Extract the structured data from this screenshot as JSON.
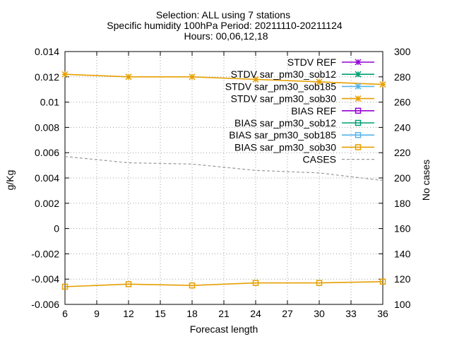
{
  "chart_data": {
    "type": "line",
    "title_lines": [
      "Selection: ALL using     7 stations",
      "Specific humidity 100hPa   Period: 20211110-20211124",
      "Hours: 00,06,12,18"
    ],
    "xlabel": "Forecast length",
    "ylabel": "g/Kg",
    "y2label": "No cases",
    "xlim": [
      6,
      36
    ],
    "ylim": [
      -0.006,
      0.014
    ],
    "y2lim": [
      100,
      300
    ],
    "xticks": [
      6,
      9,
      12,
      15,
      18,
      21,
      24,
      27,
      30,
      33,
      36
    ],
    "yticks": [
      "-0.006",
      "-0.004",
      "-0.002",
      "0",
      "0.002",
      "0.004",
      "0.006",
      "0.008",
      "0.01",
      "0.012",
      "0.014"
    ],
    "y2ticks": [
      100,
      120,
      140,
      160,
      180,
      200,
      220,
      240,
      260,
      280,
      300
    ],
    "grid": true,
    "legend_position": "top-right",
    "series": [
      {
        "name": "STDV REF",
        "color": "#9400d3",
        "marker": "star",
        "x": [],
        "y": []
      },
      {
        "name": "STDV sar_pm30_sob12",
        "color": "#009e73",
        "marker": "star",
        "x": [],
        "y": []
      },
      {
        "name": "STDV sar_pm30_sob185",
        "color": "#56b4e9",
        "marker": "star",
        "x": [],
        "y": []
      },
      {
        "name": "STDV sar_pm30_sob30",
        "color": "#e69f00",
        "marker": "star",
        "x": [
          6,
          12,
          18,
          24,
          30,
          36
        ],
        "y": [
          0.0122,
          0.012,
          0.012,
          0.0118,
          0.0116,
          0.0114
        ]
      },
      {
        "name": "BIAS REF",
        "color": "#9400d3",
        "marker": "square",
        "x": [],
        "y": []
      },
      {
        "name": "BIAS sar_pm30_sob12",
        "color": "#009e73",
        "marker": "square",
        "x": [],
        "y": []
      },
      {
        "name": "BIAS sar_pm30_sob185",
        "color": "#56b4e9",
        "marker": "square",
        "x": [],
        "y": []
      },
      {
        "name": "BIAS sar_pm30_sob30",
        "color": "#e69f00",
        "marker": "square",
        "x": [
          6,
          12,
          18,
          24,
          30,
          36
        ],
        "y": [
          -0.0046,
          -0.0044,
          -0.0045,
          -0.0043,
          -0.0043,
          -0.0042
        ]
      },
      {
        "name": "CASES",
        "color": "#999999",
        "marker": "none",
        "dashed": true,
        "axis": "y2",
        "x": [
          6,
          12,
          18,
          24,
          30,
          36
        ],
        "y": [
          217,
          212,
          211,
          206,
          204,
          198
        ]
      }
    ]
  }
}
